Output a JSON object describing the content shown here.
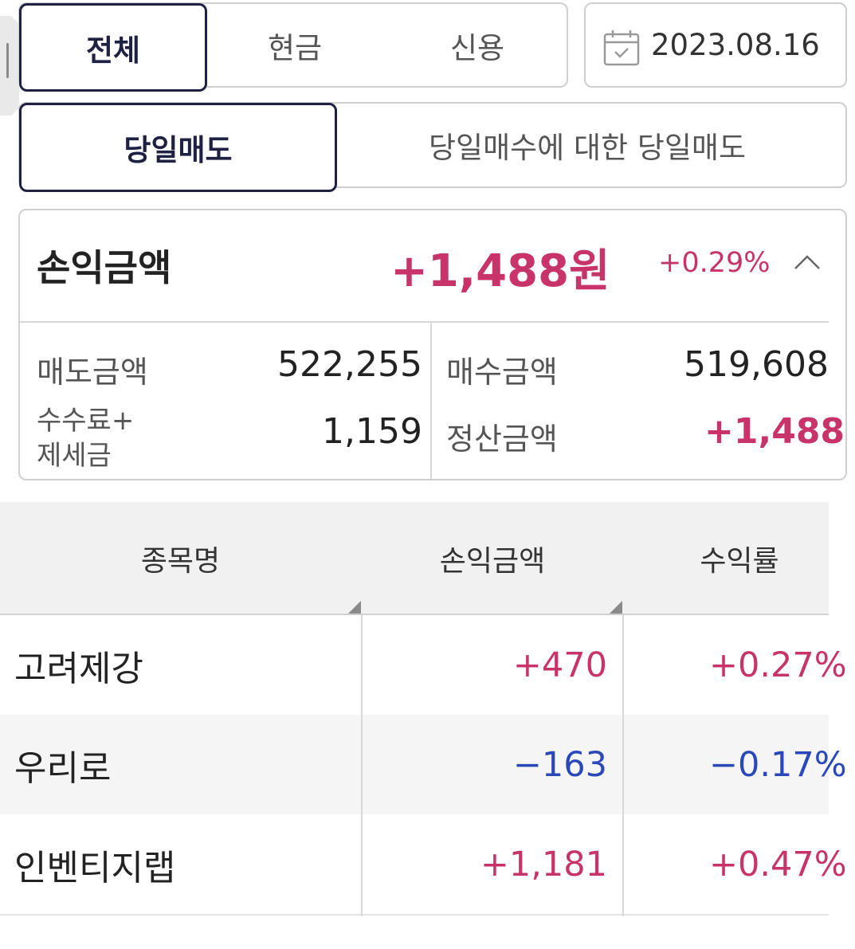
{
  "account_tabs": {
    "all": "전체",
    "cash": "현금",
    "credit": "신용"
  },
  "date": "2023.08.16",
  "sell_tabs": {
    "same_day_sell": "당일매도",
    "same_day_sell_of_buy": "당일매수에 대한 당일매도"
  },
  "summary": {
    "pnl_label": "손익금액",
    "pnl_value": "+1,488원",
    "pnl_rate": "+0.29%",
    "sell_amount_label": "매도금액",
    "sell_amount": "522,255",
    "buy_amount_label": "매수금액",
    "buy_amount": "519,608",
    "fee_tax_label_1": "수수료+",
    "fee_tax_label_2": "제세금",
    "fee_tax": "1,159",
    "settlement_label": "정산금액",
    "settlement": "+1,488"
  },
  "table": {
    "headers": {
      "name": "종목명",
      "pnl": "손익금액",
      "rate": "수익률"
    },
    "rows": [
      {
        "name": "고려제강",
        "pnl": "+470",
        "rate": "+0.27%",
        "sign": "pos"
      },
      {
        "name": "우리로",
        "pnl": "−163",
        "rate": "−0.17%",
        "sign": "neg"
      },
      {
        "name": "인벤티지랩",
        "pnl": "+1,181",
        "rate": "+0.47%",
        "sign": "pos"
      }
    ]
  },
  "colors": {
    "navy": "#1e2142",
    "positive": "#c8336a",
    "negative": "#2b48b8"
  }
}
